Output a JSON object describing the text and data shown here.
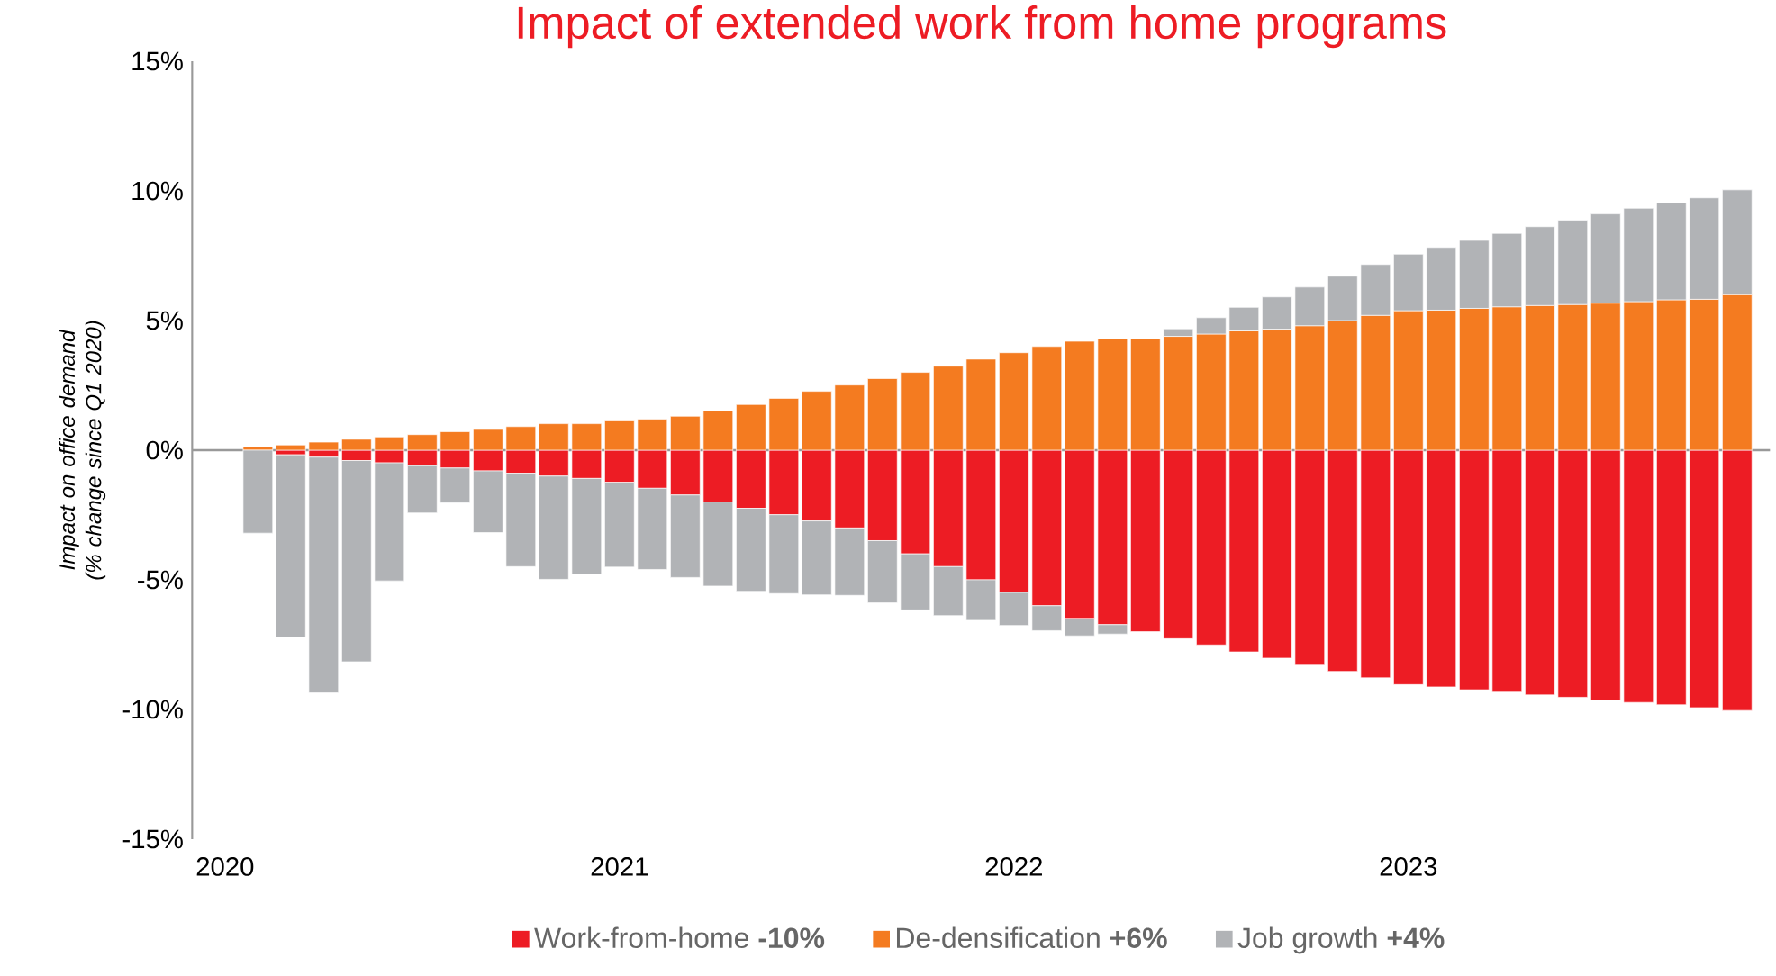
{
  "chart_data": {
    "type": "bar",
    "stacked": true,
    "title": "Impact of extended work from home programs",
    "ylabel": "Impact on office demand (% change since Q1 2020)",
    "x": [
      "2020-02",
      "2020-03",
      "2020-04",
      "2020-05",
      "2020-06",
      "2020-07",
      "2020-08",
      "2020-09",
      "2020-10",
      "2020-11",
      "2020-12",
      "2021-01",
      "2021-02",
      "2021-03",
      "2021-04",
      "2021-05",
      "2021-06",
      "2021-07",
      "2021-08",
      "2021-09",
      "2021-10",
      "2021-11",
      "2021-12",
      "2022-01",
      "2022-02",
      "2022-03",
      "2022-04",
      "2022-05",
      "2022-06",
      "2022-07",
      "2022-08",
      "2022-09",
      "2022-10",
      "2022-11",
      "2022-12",
      "2023-01",
      "2023-02",
      "2023-03",
      "2023-04",
      "2023-05",
      "2023-06",
      "2023-07",
      "2023-08",
      "2023-09",
      "2023-10",
      "2023-11"
    ],
    "series": [
      {
        "name": "Work-from-home **-10%**",
        "color": "#ed1c24",
        "values": [
          null,
          -0.18,
          -0.27,
          -0.4,
          -0.49,
          -0.6,
          -0.69,
          -0.8,
          -0.89,
          -1.0,
          -1.09,
          -1.24,
          -1.47,
          -1.73,
          -2.0,
          -2.24,
          -2.49,
          -2.73,
          -3.0,
          -3.49,
          -4.0,
          -4.49,
          -5.0,
          -5.49,
          -6.0,
          -6.49,
          -6.73,
          -7.0,
          -7.27,
          -7.51,
          -7.78,
          -8.02,
          -8.29,
          -8.53,
          -8.78,
          -9.04,
          -9.13,
          -9.24,
          -9.33,
          -9.44,
          -9.53,
          -9.64,
          -9.73,
          -9.82,
          -9.93,
          -10.04
        ]
      },
      {
        "name": "De-densification **+6%**",
        "color": "#f47b20",
        "values": [
          0.13,
          0.2,
          0.31,
          0.42,
          0.51,
          0.6,
          0.71,
          0.8,
          0.91,
          1.02,
          1.02,
          1.13,
          1.2,
          1.31,
          1.51,
          1.76,
          2.0,
          2.27,
          2.51,
          2.76,
          3.0,
          3.24,
          3.51,
          3.76,
          4.0,
          4.2,
          4.29,
          4.29,
          4.39,
          4.48,
          4.6,
          4.67,
          4.8,
          5.0,
          5.2,
          5.38,
          5.4,
          5.47,
          5.53,
          5.58,
          5.62,
          5.67,
          5.73,
          5.8,
          5.82,
          6.0
        ]
      },
      {
        "name": "Job growth **+4%**",
        "color": "#b1b3b6",
        "values": [
          -3.2,
          -7.04,
          -9.09,
          -7.76,
          -4.55,
          -1.82,
          -1.33,
          -2.38,
          -3.6,
          -3.98,
          -3.69,
          -3.27,
          -3.13,
          -3.18,
          -3.24,
          -3.2,
          -3.04,
          -2.85,
          -2.6,
          -2.4,
          -2.16,
          -1.89,
          -1.56,
          -1.27,
          -0.96,
          -0.67,
          -0.36,
          null,
          0.29,
          0.63,
          0.91,
          1.24,
          1.49,
          1.71,
          1.96,
          2.18,
          2.42,
          2.62,
          2.83,
          3.04,
          3.25,
          3.44,
          3.6,
          3.73,
          3.91,
          4.04
        ]
      }
    ],
    "xlim": [
      "2019-12",
      "2023-12"
    ],
    "xticks": [
      "2020",
      "2021",
      "2022",
      "2023"
    ],
    "ylim": [
      -15,
      15
    ],
    "yticks": [
      {
        "value": -15,
        "label": "-15%"
      },
      {
        "value": -10,
        "label": "-10%"
      },
      {
        "value": -5,
        "label": "-5%"
      },
      {
        "value": 0,
        "label": "0%"
      },
      {
        "value": 5,
        "label": "5%"
      },
      {
        "value": 10,
        "label": "10%"
      },
      {
        "value": 15,
        "label": "15%"
      }
    ],
    "legend": "bottom"
  }
}
